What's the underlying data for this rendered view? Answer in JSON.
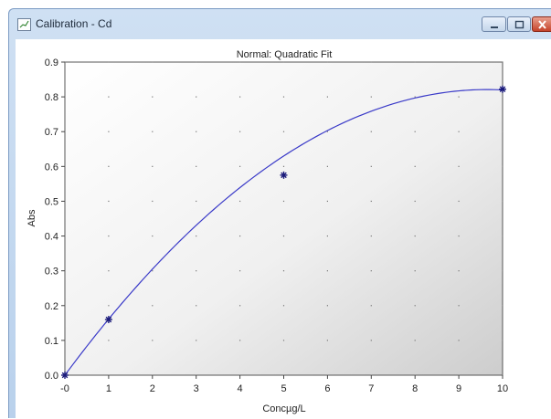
{
  "window": {
    "title": "Calibration - Cd"
  },
  "chart_data": {
    "type": "line",
    "title": "Normal: Quadratic Fit",
    "xlabel": "Concµg/L",
    "ylabel": "Abs",
    "xlim": [
      0,
      10
    ],
    "ylim": [
      0,
      0.9
    ],
    "x_ticks": [
      "-0",
      "1",
      "2",
      "3",
      "4",
      "5",
      "6",
      "7",
      "8",
      "9",
      "10"
    ],
    "y_ticks": [
      "0.0",
      "0.1",
      "0.2",
      "0.3",
      "0.4",
      "0.5",
      "0.6",
      "0.7",
      "0.8",
      "0.9"
    ],
    "grid": "dotted",
    "points": [
      {
        "x": 0,
        "y": 0.0
      },
      {
        "x": 1,
        "y": 0.16
      },
      {
        "x": 5,
        "y": 0.575
      },
      {
        "x": 10,
        "y": 0.822
      }
    ],
    "fit": {
      "a": 0.17,
      "b": -0.0088
    },
    "colors": {
      "line": "#3a3ac8",
      "marker": "#1a1a7a"
    }
  }
}
